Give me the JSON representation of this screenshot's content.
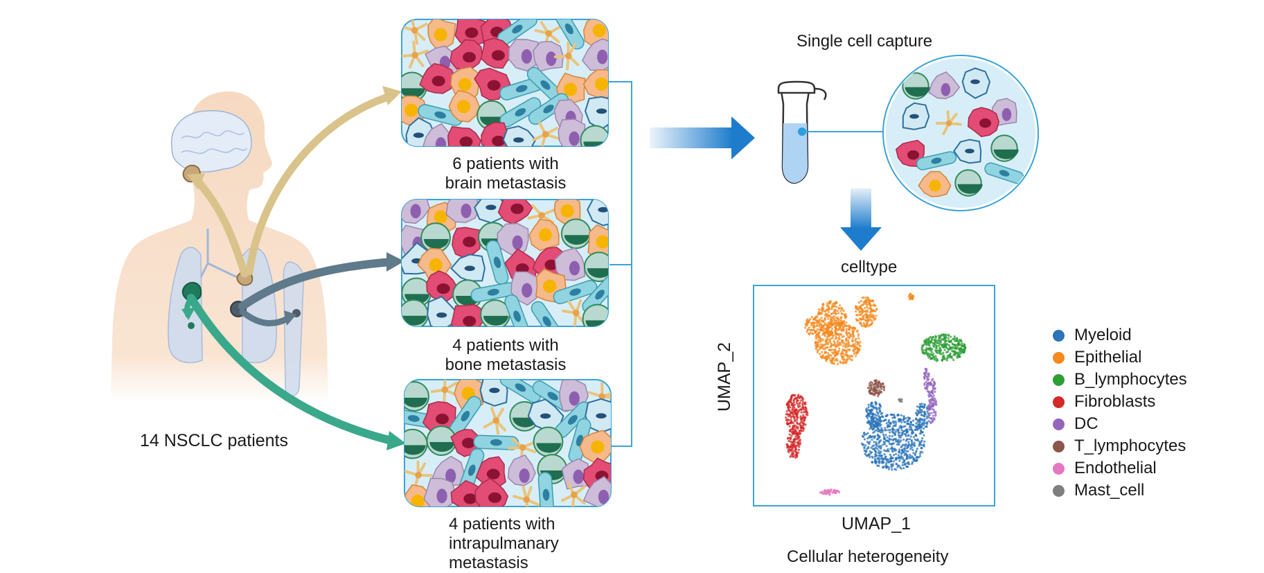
{
  "labels": {
    "patients_total": "14 NSCLC patients",
    "brain_group": [
      "6 patients with",
      "brain metastasis"
    ],
    "bone_group": [
      "4 patients with",
      "bone metastasis"
    ],
    "intra_group": [
      "4 patients with",
      "intrapulmanary",
      "metastasis"
    ],
    "single_cell": "Single cell capture",
    "celltype": "celltype",
    "umap_x": "UMAP_1",
    "umap_y": "UMAP_2",
    "heterogeneity": "Cellular heterogeneity"
  },
  "legend": [
    {
      "label": "Myeloid",
      "color": "#2b74b8"
    },
    {
      "label": "Epithelial",
      "color": "#f58a1f"
    },
    {
      "label": "B_lymphocytes",
      "color": "#2e9e35"
    },
    {
      "label": "Fibroblasts",
      "color": "#d42a2a"
    },
    {
      "label": "DC",
      "color": "#9467bd"
    },
    {
      "label": "T_lymphocytes",
      "color": "#8c564b"
    },
    {
      "label": "Endothelial",
      "color": "#e377c2"
    },
    {
      "label": "Mast_cell",
      "color": "#7f7f7f"
    }
  ],
  "colors": {
    "brain_arrow": "#d9c38a",
    "bone_arrow": "#5f7a8a",
    "intra_arrow": "#3aa88a",
    "flow_arrow": "#1e7ccc",
    "frame_blue": "#3aa3d8"
  }
}
